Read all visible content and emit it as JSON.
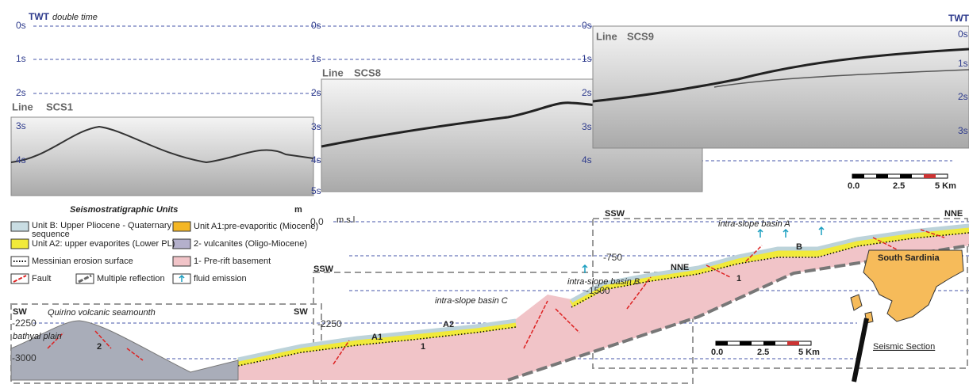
{
  "header": {
    "twt_left": "TWT",
    "twt_note": "double time",
    "twt_right": "TWT"
  },
  "time_axes": [
    [
      "0s",
      "1s",
      "2s",
      "3s",
      "4s"
    ],
    [
      "0s",
      "1s",
      "2s",
      "3s",
      "4s",
      "5s"
    ],
    [
      "0s",
      "1s",
      "2s",
      "3s",
      "4s"
    ],
    [
      "0s",
      "1s",
      "2s",
      "3s"
    ]
  ],
  "profiles": [
    {
      "prefix": "Line",
      "name": "SCS1"
    },
    {
      "prefix": "Line",
      "name": "SCS8"
    },
    {
      "prefix": "Line",
      "name": "SCS9"
    }
  ],
  "scale_bars": [
    [
      "0.0",
      "2.5",
      "5 Km"
    ],
    [
      "0.0",
      "2.5",
      "5 Km"
    ]
  ],
  "legend": {
    "title": "Seismostratigraphic Units",
    "items": [
      [
        "Unit B: Upper Pliocene - Quaternary",
        "sequence"
      ],
      [
        "Unit A2: upper evaporites (Lower PL)"
      ],
      [
        "Messinian erosion surface"
      ],
      [
        "Fault"
      ],
      [
        "Multiple reflection"
      ],
      [
        "Unit A1:pre-evaporitic (Miocene)"
      ],
      [
        "2- vulcanites (Oligo-Miocene)"
      ],
      [
        "1- Pre-rift basement"
      ],
      [
        "fluid emission"
      ]
    ]
  },
  "section": {
    "unit": "m",
    "sea_level": "0.0",
    "sea_level_note": "m.s.l",
    "depths": [
      "-750",
      "-1500",
      "-2250",
      "-2250",
      "-3000"
    ],
    "directions": [
      "SSW",
      "NNE",
      "SSW",
      "NNE",
      "SW",
      "SW"
    ],
    "seamount": "Quirino volcanic seamounth",
    "plain": "bathyal plain",
    "units": [
      "2",
      "1",
      "A1",
      "A2",
      "1",
      "B"
    ],
    "basins": [
      "intra-slope basin C",
      "intra-slope basin B",
      "intra-slope basin A"
    ],
    "map_label": "South Sardinia",
    "map_section": "Seismic Section"
  }
}
